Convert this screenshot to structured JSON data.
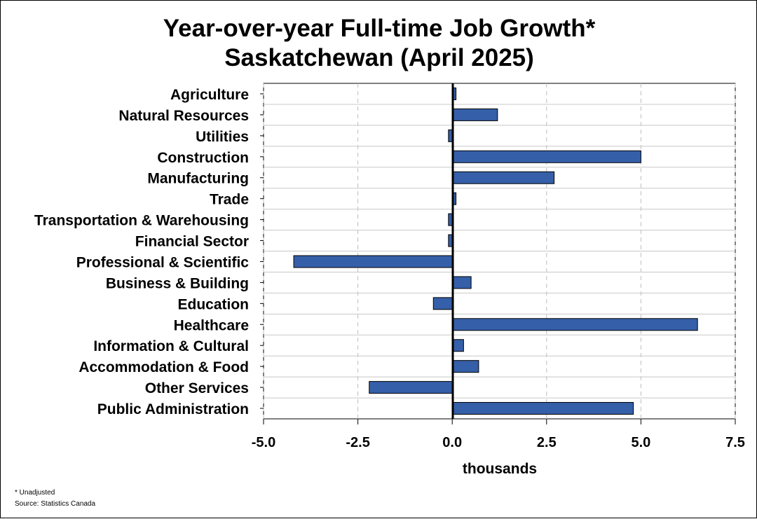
{
  "chart_data": {
    "type": "bar",
    "orientation": "horizontal",
    "title": [
      "Year-over-year Full-time Job Growth*",
      "Saskatchewan (April 2025)"
    ],
    "xlabel": "thousands",
    "ylabel": "",
    "xlim": [
      -5.0,
      7.5
    ],
    "xticks": [
      "-5.0",
      "-2.5",
      "0.0",
      "2.5",
      "5.0",
      "7.5"
    ],
    "xtick_values": [
      -5.0,
      -2.5,
      0.0,
      2.5,
      5.0,
      7.5
    ],
    "grid": "vertical dashed",
    "categories": [
      "Agriculture",
      "Natural Resources",
      "Utilities",
      "Construction",
      "Manufacturing",
      "Trade",
      "Transportation & Warehousing",
      "Financial Sector",
      "Professional & Scientific",
      "Business & Building",
      "Education",
      "Healthcare",
      "Information & Cultural",
      "Accommodation & Food",
      "Other Services",
      "Public Administration"
    ],
    "values": [
      0.1,
      1.2,
      -0.1,
      5.0,
      2.7,
      0.1,
      -0.1,
      -0.1,
      -4.2,
      0.5,
      -0.5,
      6.5,
      0.3,
      0.7,
      -2.2,
      4.8
    ],
    "bar_color": "#355fa8",
    "footnotes": [
      "* Unadjusted",
      "Source: Statistics Canada"
    ]
  }
}
